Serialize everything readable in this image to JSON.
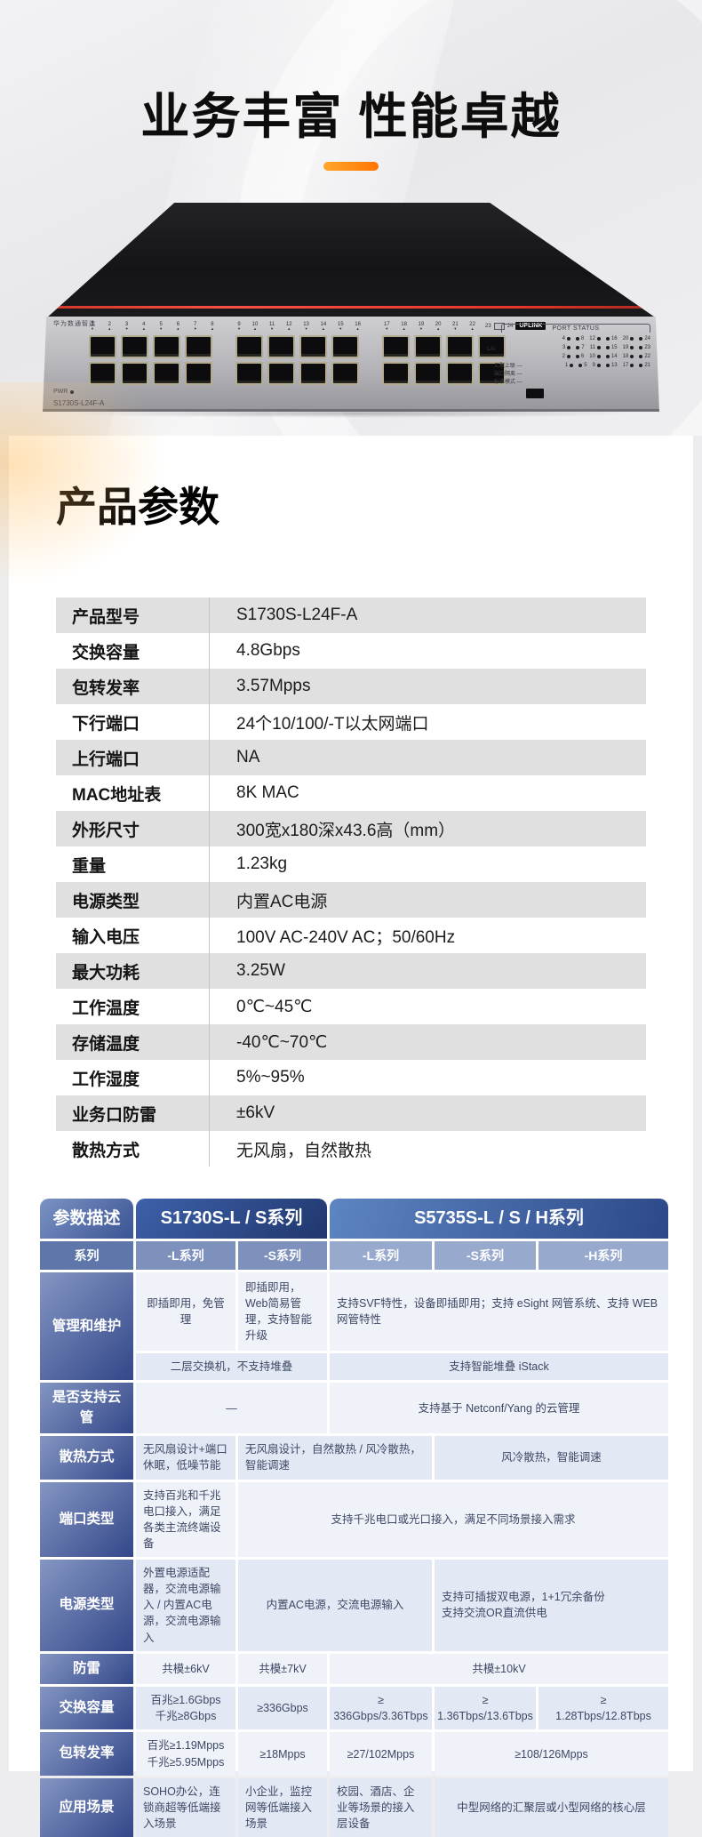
{
  "hero": {
    "title": "业务丰富 性能卓越",
    "device": {
      "brand_label": "华为数通智选",
      "model_label": "S1730S-L24F-A",
      "pwr_label": "PWR",
      "uplink_label": "UPLINK",
      "uplink_ports": [
        "23",
        "24"
      ],
      "port_groups": [
        [
          "1",
          "2",
          "3",
          "4",
          "5",
          "6",
          "7",
          "8"
        ],
        [
          "9",
          "10",
          "11",
          "12",
          "13",
          "14",
          "15",
          "16"
        ],
        [
          "17",
          "18",
          "19",
          "20",
          "21",
          "22"
        ]
      ],
      "port_status_label": "PORT STATUS",
      "la_label": "L/A",
      "led_rows": [
        [
          "4",
          "8",
          "12",
          "16",
          "20",
          "24"
        ],
        [
          "3",
          "7",
          "11",
          "15",
          "19",
          "23"
        ],
        [
          "2",
          "6",
          "10",
          "14",
          "18",
          "22"
        ],
        [
          "1",
          "5",
          "9",
          "13",
          "17",
          "21"
        ]
      ],
      "mode_labels": [
        "汇聚上联",
        "端口隔离",
        "标准模式"
      ]
    }
  },
  "spec": {
    "heading": "产品参数",
    "rows": [
      {
        "label": "产品型号",
        "value": "S1730S-L24F-A"
      },
      {
        "label": "交换容量",
        "value": "4.8Gbps"
      },
      {
        "label": "包转发率",
        "value": "3.57Mpps"
      },
      {
        "label": "下行端口",
        "value": "24个10/100/-T以太网端口"
      },
      {
        "label": "上行端口",
        "value": "NA"
      },
      {
        "label": "MAC地址表",
        "value": "8K MAC"
      },
      {
        "label": "外形尺寸",
        "value": "300宽x180深x43.6高（mm）"
      },
      {
        "label": "重量",
        "value": "1.23kg"
      },
      {
        "label": "电源类型",
        "value": "内置AC电源"
      },
      {
        "label": "输入电压",
        "value": "100V AC-240V AC；50/60Hz"
      },
      {
        "label": "最大功耗",
        "value": "3.25W"
      },
      {
        "label": "工作温度",
        "value": "0℃~45℃"
      },
      {
        "label": "存储温度",
        "value": "-40℃~70℃"
      },
      {
        "label": "工作湿度",
        "value": "5%~95%"
      },
      {
        "label": "业务口防雷",
        "value": "±6kV"
      },
      {
        "label": "散热方式",
        "value": "无风扇，自然散热"
      }
    ]
  },
  "comparison": {
    "header": {
      "param": "参数描述",
      "s1730": "S1730S-L / S系列",
      "s5735": "S5735S-L / S / H系列"
    },
    "subheader": {
      "series": "系列",
      "c1": "-L系列",
      "c2": "-S系列",
      "c3": "-L系列",
      "c4": "-S系列",
      "c5": "-H系列"
    },
    "mgmt": {
      "label": "管理和维护",
      "c1": "即插即用，免管理",
      "c2": "即插即用，Web简易管理，支持智能升级",
      "c3": "支持SVF特性，设备即插即用；支持 eSight 网管系统、支持 WEB 网管特性",
      "c4": "二层交换机，不支持堆叠",
      "c5": "支持智能堆叠 iStack"
    },
    "cloud": {
      "label": "是否支持云管",
      "c1": "—",
      "c2": "支持基于 Netconf/Yang 的云管理"
    },
    "cooling": {
      "label": "散热方式",
      "c1": "无风扇设计+端口休眠，低噪节能",
      "c2": "无风扇设计，自然散热 / 风冷散热，智能调速",
      "c3": "风冷散热，智能调速"
    },
    "ports": {
      "label": "端口类型",
      "c1": "支持百兆和千兆电口接入，满足各类主流终端设备",
      "c2": "支持千兆电口或光口接入，满足不同场景接入需求"
    },
    "power": {
      "label": "电源类型",
      "c1": "外置电源适配器，交流电源输入 / 内置AC电源，交流电源输入",
      "c2": "内置AC电源，交流电源输入",
      "c3": "支持可插拔双电源，1+1冗余备份\n支持交流OR直流供电"
    },
    "lightning": {
      "label": "防雷",
      "c1": "共模±6kV",
      "c2": "共模±7kV",
      "c3": "共模±10kV"
    },
    "capacity": {
      "label": "交换容量",
      "c1": "百兆≥1.6Gbps\n千兆≥8Gbps",
      "c2": "≥336Gbps",
      "c3": "≥\n336Gbps/3.36Tbps",
      "c4": "≥\n1.36Tbps/13.6Tbps",
      "c5": "≥\n1.28Tbps/12.8Tbps"
    },
    "forwarding": {
      "label": "包转发率",
      "c1": "百兆≥1.19Mpps\n千兆≥5.95Mpps",
      "c2": "≥18Mpps",
      "c3": "≥27/102Mpps",
      "c4": "≥108/126Mpps"
    },
    "scenario": {
      "label": "应用场景",
      "c1": "SOHO办公，连锁商超等低端接入场景",
      "c2": "小企业，监控网等低端接入场景",
      "c3": "校园、酒店、企业等场景的接入层设备",
      "c4": "中型网络的汇聚层或小型网络的核心层"
    }
  }
}
